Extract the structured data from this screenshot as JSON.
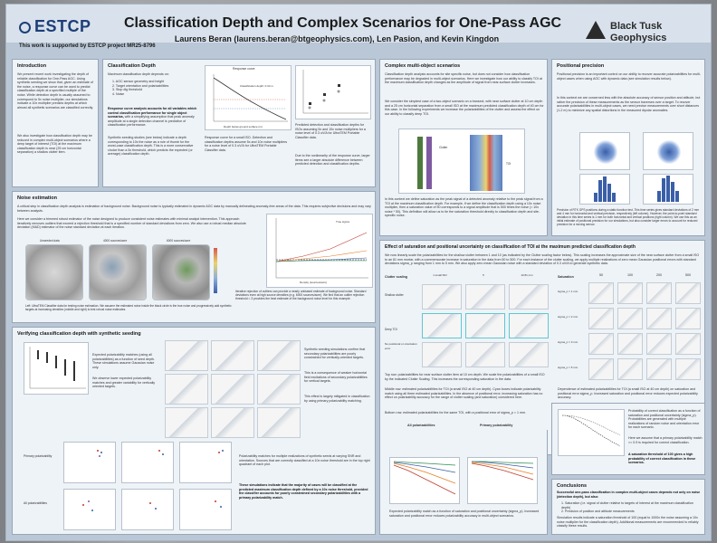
{
  "header": {
    "logo_left": "ESTCP",
    "title": "Classification Depth and Complex Scenarios for One-Pass AGC",
    "authors": "Laurens Beran (laurens.beran@btgeophysics.com), Len Pasion, and Kevin Kingdon",
    "support": "This work is supported by ESTCP project MR25-8796",
    "logo_right_line1": "Black Tusk",
    "logo_right_line2": "Geophysics"
  },
  "sections": {
    "introduction": "Introduction",
    "classification_depth": "Classification Depth",
    "complex_multi": "Complex multi-object scenarios",
    "positional_precision": "Positional precision",
    "noise_estimation": "Noise estimation",
    "effect_saturation": "Effect of saturation and positional uncertainty on classification of TOI at the maximum predicted classification depth",
    "verifying": "Verifying classification depth with synthetic seeding",
    "conclusions": "Conclusions"
  },
  "intro": {
    "p1": "We present recent work investigating the depth of reliable classification for One-Pass AGC. Using synthetic seeding we show that, given an estimate of the noise, a response curve can be used to predict classification depth at a specified multiple of the noise. While detection depth is usually assumed to correspond to 5x noise multiplier, our simulations indicate a 10x multiplier predicts depths at which almost all synthetic scenarios are classified correctly.",
    "p2": "We also investigate how classification depth may be reduced in complex multi-object scenarios where a deep target of interest (TOI) at the maximum classification depth is near (25 cm horizontal separation) a shallow clutter item."
  },
  "class_depth": {
    "lead": "Maximum classification depth depends on:",
    "items": [
      "1. AGC sensor geometry and height",
      "2. Target orientation and polarizabilities",
      "3. Stop dig threshold",
      "4. Noise"
    ],
    "bold": "Response curve analysis accounts for all variables which control classification performance for single object scenarios,",
    "p2": "with a simplifying assumption that peak anomaly amplitude at a single detection channel is predictive of classification performance.",
    "p3": "Synthetic seeding studies (see below) indicate a depth corresponding to 10x the noise as a rule of thumb for the worst-case classification depth. This is a more conservative choice than a 5x threshold, which predicts the expected (or average) classification depth.",
    "fig_title": "Response curve",
    "fig_ann": "Classification depth: 0.34 m",
    "fig_xlabel": "Depth below ground surface (m)",
    "cap1": "Response curve for a small ISO. Detection and classification depths assume 5x and 10x noise multipliers for a noise level of 0.3 uV/A for UltraTEM Portable Classifier data.",
    "cap2": "Predicted detection and classification depths for ISOs assuming 5x and 10x noise multipliers for a noise level of 0.3 uV/A for UltraTEM Portable Classifier data.",
    "cap3": "Due to the nonlinearity of the response curve, larger items see a larger absolute difference between predicted detection and classification depths."
  },
  "complex": {
    "p1": "Classification depth analysis accounts for site specific noise, but does not consider how classification performance may be degraded in multi-object scenarios. Here we investigate how our ability to classify TOI at the maximum classification depth changes as the amplitude of signal from near-surface clutter increases.",
    "p2": "We consider the simplest case of a two-object scenario on a transect, with near surface clutter at 10 cm depth and a 25 cm horizontal separation from a small ISO at the maximum predicted classification depth of 40 cm for this case. In the following experiments we increase the polarizabilities of the clutter and assess the effect on our ability to classify deep TOI.",
    "ann_clutter": "Clutter",
    "ann_toi": "TOI",
    "p3": "In this context we define saturation as the peak signal of a detected anomaly relative to the peak signal from a TOI at the maximum classification depth. For example, if we define the classification depth using a 10x noise multiplier, then a saturation value of 50 corresponds to a signal amplitude that is 500 times the noise (= 10x noise * 50). This definition will allow us to tie the saturation threshold directly to classification depth and site-specific noise."
  },
  "positional": {
    "p1": "Positional precision is an important control on our ability to recover accurate polarizabilities for multi-object cases when using AGC with dynamic data (see simulation results below).",
    "p2": "In this context we are concerned less with the absolute accuracy of sensor position and attitude, but rather the precision of these measurements as the sensor traverses over a target. To recover accurate polarizabilities in multi-object cases, we need precise measurements over short distances (1-2 m) to minimize any spatial distortions in the measured dipolar anomalies.",
    "cap": "Precision of RTK GPS positions during a static function test. This time series gives standard deviations of 2 mm and 4 mm for horizontal and vertical precision, respectively (left column). However, the point-to-point standard deviation in this time series is 1 mm for both horizontal and vertical positions (right column). We use this as an initial estimate of positional precision for our simulations, but also consider larger errors to account for reduced precision for a moving sensor."
  },
  "noise": {
    "p1": "A critical step in classification depth analysis is estimation of background noise. Background noise is typically estimated in dynamic AGC data by manually delineating anomaly-free areas of the data. This requires subjective decisions and may vary between analysts.",
    "p2": "Here we consider a trimmed robust estimator of the noise designed to produce consistent noise estimates with minimal analyst intervention. This approach iteratively removes outliers that exceed a rejection threshold that is a specified number of standard deviations from zero. We also use a robust median absolute deviation (MAD) estimator of the noise standard deviation at each iteration.",
    "map_labels": [
      "Unseeded data",
      "4000 sources/acre",
      "6000 sources/acre"
    ],
    "cap_left": "Left: UltraTEM Classifier data for testing noise estimation. We assume the estimated noise inside the black circle is the true noise and progressively add synthetic targets at increasing densities (middle and right) to test robust noise estimates.",
    "cap_right": "Iterative rejection of outliers can provide a nearly unbiased estimate of background noise. Standard deviations even at high source densities (e.g. 6000 sources/acre). We find that an outlier rejection threshold = 3 provides the best estimate of the background noise level for this example.",
    "legend": "True sigma",
    "xlabel": "Density (sources/acre)"
  },
  "effect": {
    "p1": "We now linearly scale the polarizabilities for the shallow clutter between 1 and 10 (as indicated by the Clutter scaling factor below). This scaling increases the approximate size of the near surface clutter from a small ISO to an 81 mm mortar, with a commensurate increase in saturation in the data from 50 to 500. For each instance of the clutter scaling, we apply multiple realizations of zero mean Gaussian positional errors with standard deviations sigma_p ranging from 1 mm to 5 mm. We also apply zero mean Gaussian noise with a standard deviation of 0.3 uV/A to generate synthetic data.",
    "row_label": "Clutter scaling",
    "sat_label": "Saturation",
    "scaling": [
      "1\nsmall ISO",
      "5",
      "10\n81 mm",
      "1",
      "5",
      "10"
    ],
    "saturation": [
      "50",
      "100",
      "200",
      "500"
    ],
    "row_heads": [
      "Shallow clutter",
      "Deep TOI",
      "No positional or orientation error"
    ],
    "sigma_rows": [
      "sigma_p = 1 mm",
      "sigma_p = 2 mm",
      "sigma_p = 3 mm",
      "sigma_p = 5 mm"
    ],
    "cap_top": "Top row: polarizabilities for near surface clutter item at 10 cm depth. We scale the polarizabilities of a small ISO by the indicated Clutter Scaling. This increases the corresponding saturation in the data.",
    "cap_mid": "Middle row: estimated polarizabilities for TOI (a small ISO at 40 cm depth). Cyan boxes indicate polarizability match using all three estimated polarizabilities. In the absence of positional error, increasing saturation has no effect on polarizability accuracy for the range of clutter scaling (and saturation) considered here.",
    "cap_bot": "Bottom row: estimated polarizabilities for the same TOI, with a positional error of sigma_p = 1 mm.",
    "cap_dep": "Dependence of estimated polarizabilities for TOI (a small ISO at 40 cm depth) on saturation and positional error sigma_p. Increased saturation and positional error reduces expected polarizability accuracy.",
    "prob_cap": "Probability of correct classification as a function of saturation and positional uncertainty (sigma_p). Probabilities are generated with multiple realizations of random noise and orientation error for each scenario.",
    "prob_p2": "Here we assume that a primary polarizability match >= 0.9 is required for correct classification.",
    "prob_bold": "A saturation threshold of 100 gives a high probability of correct classification in these scenarios.",
    "bottom_left_title": "All polarizabilities",
    "bottom_right_title": "Primary polarizability",
    "bottom_cap": "Expected polarizability match as a function of saturation and positional uncertainty (sigma_p). Increased saturation and positional error reduces polarizability accuracy in multi-object scenarios."
  },
  "verifying": {
    "p1": "Expected polarizability matches (using all polarizabilities) as a function of seed depth. These simulations assume Gaussian noise only.",
    "p2": "We observe lower expected polarizability matches and greater variability for vertically oriented targets.",
    "right1": "Synthetic seeding simulations confirm that secondary polarizabilities are poorly constrained for vertically-oriented targets.",
    "right2": "This is a consequence of weaker horizontal field excitations of secondary polarizabilities for vertical targets.",
    "right3": "This effect is largely mitigated in classification by using primary polarizability matching.",
    "row_labels": [
      "Primary polarizability",
      "All polarizabilities"
    ],
    "cap1": "Polarizability matches for multiple realizations of synthetic seeds at varying SNR and orientation. Sources that are correctly classified at a 10x noise threshold are in the top right quadrant of each plot.",
    "cap2": "These simulations indicate that the majority of cases will be classified at the predicted maximum classification depth defined by a 10x noise threshold, provided the classifier accounts for poorly constrained secondary polarizabilities with a primary polarizability match."
  },
  "conclusions": {
    "p1": "Successful one-pass classification in complex multi-object cases depends not only on noise (detection depth), but also:",
    "items": [
      "1. Saturation (i.e. signal of clutter relative to targets of interest at the maximum classification depth)",
      "2. Precision of position and attitude measurements"
    ],
    "p2": "Simulation results indicate a saturation threshold of 100 (equal to 1000x the noise assuming a 10x noise multiplier for the classification depth). Additional measurements are recommended to reliably classify these results."
  },
  "chart_data": [
    {
      "type": "line",
      "title": "Response curve",
      "xlabel": "Depth below ground surface (m)",
      "ylabel": "",
      "annotations": [
        "Classification depth: 0.34 m"
      ]
    },
    {
      "type": "line",
      "title": "",
      "xlabel": "Density (sources/acre)",
      "ylabel": "",
      "legend": [
        "True sigma"
      ]
    }
  ],
  "colors": {
    "board": "#b9c7d7",
    "panel": "#eef3f8",
    "navy": "#1d3f78",
    "red": "#c0392b",
    "blue": "#3a5fa8"
  }
}
